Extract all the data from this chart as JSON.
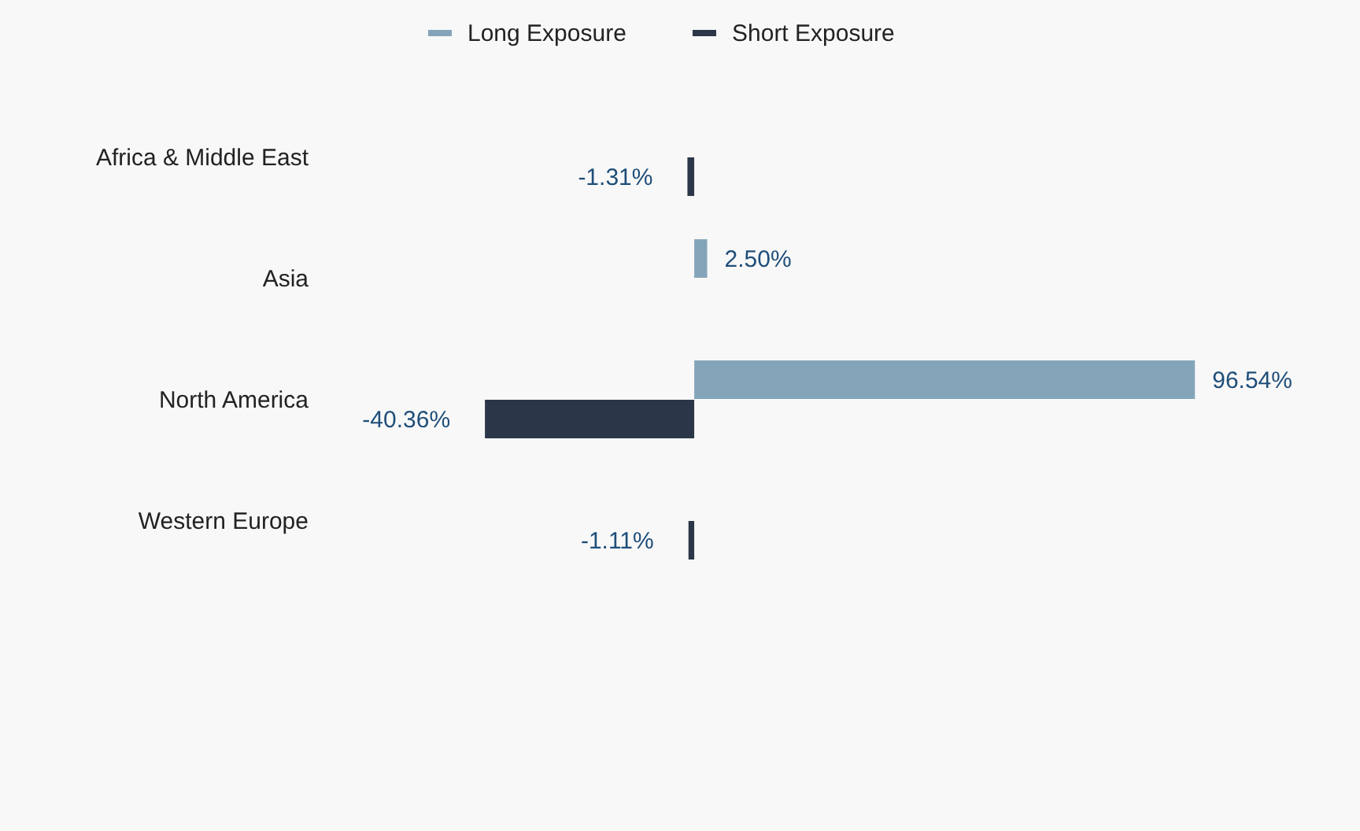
{
  "chart_data": {
    "type": "bar",
    "orientation": "horizontal",
    "categories": [
      "Africa & Middle East",
      "Asia",
      "North America",
      "Western Europe"
    ],
    "series": [
      {
        "name": "Long Exposure",
        "color": "#84a5b9",
        "values": [
          null,
          2.5,
          96.54,
          null
        ],
        "value_labels": [
          null,
          "2.50%",
          "96.54%",
          null
        ]
      },
      {
        "name": "Short Exposure",
        "color": "#2b3748",
        "values": [
          -1.31,
          null,
          -40.36,
          -1.11
        ],
        "value_labels": [
          "-1.31%",
          null,
          "-40.36%",
          "-1.11%"
        ]
      }
    ],
    "legend": "top",
    "grid": false,
    "tick_labels": "y"
  }
}
